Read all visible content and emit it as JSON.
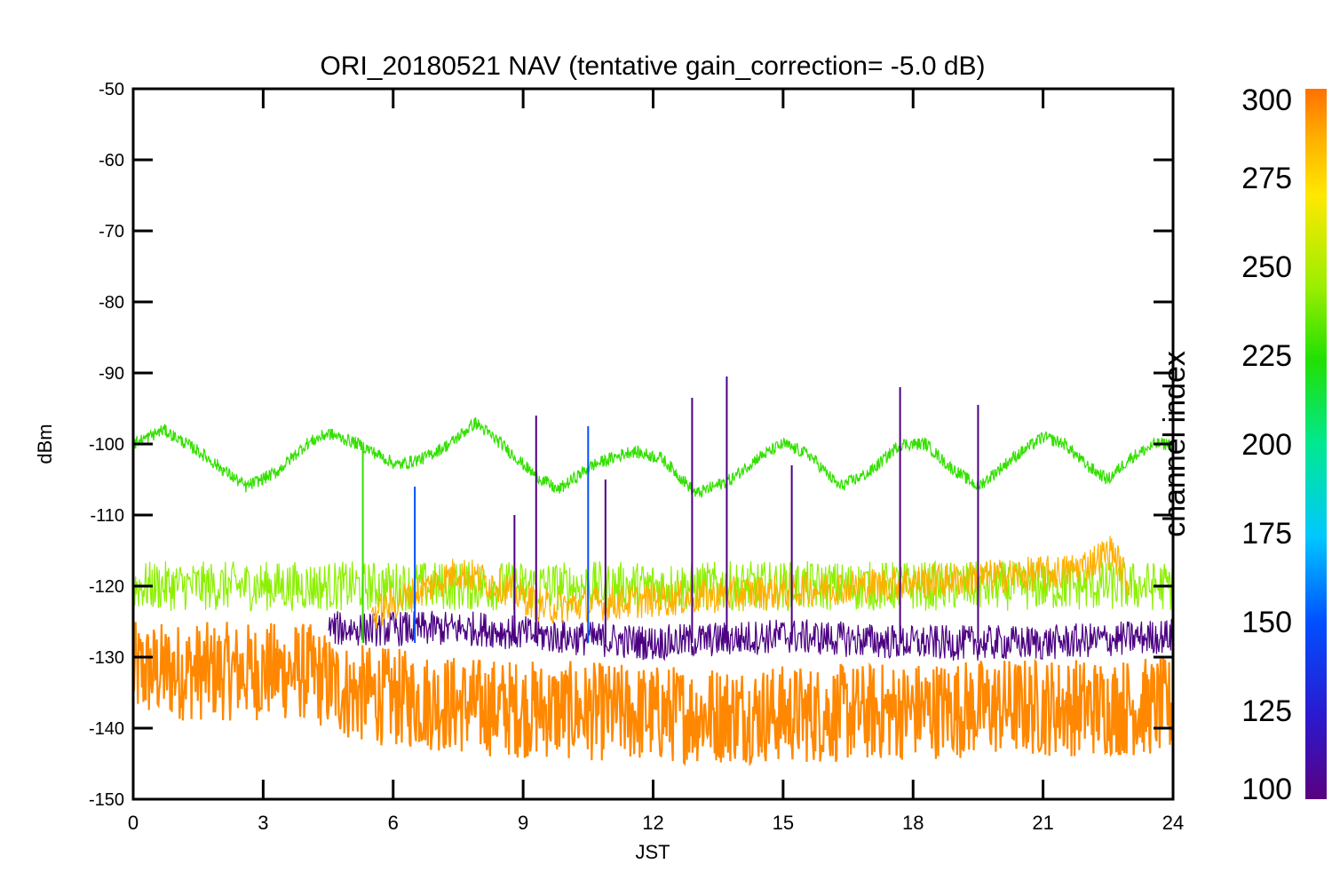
{
  "chart_data": {
    "type": "line",
    "title": "ORI_20180521 NAV (tentative gain_correction= -5.0 dB)",
    "xlabel": "JST",
    "ylabel": "dBm",
    "xlim": [
      0,
      24
    ],
    "ylim": [
      -150,
      -50
    ],
    "x_ticks": [
      "0",
      "3",
      "6",
      "9",
      "12",
      "15",
      "18",
      "21",
      "24"
    ],
    "y_ticks": [
      "-50",
      "-60",
      "-70",
      "-80",
      "-90",
      "-100",
      "-110",
      "-120",
      "-130",
      "-140",
      "-150"
    ],
    "grid": false,
    "colorbar": {
      "label": "channel index",
      "range": [
        100,
        300
      ],
      "ticks": [
        "100",
        "125",
        "150",
        "175",
        "200",
        "225",
        "250",
        "275",
        "300"
      ],
      "colors": [
        "#5a0080",
        "#2a1ad0",
        "#0050ff",
        "#00c8ff",
        "#00e890",
        "#22e000",
        "#9aee00",
        "#ffe800",
        "#ffb000",
        "#ff7000"
      ]
    },
    "series": [
      {
        "channel": 230,
        "color": "#33e000",
        "values": [
          [
            0,
            -100
          ],
          [
            0.7,
            -98
          ],
          [
            1.5,
            -101
          ],
          [
            2.6,
            -106
          ],
          [
            3.3,
            -104
          ],
          [
            4.0,
            -100
          ],
          [
            4.5,
            -98.5
          ],
          [
            5.2,
            -100
          ],
          [
            6.1,
            -103
          ],
          [
            6.7,
            -102
          ],
          [
            7.3,
            -100
          ],
          [
            7.9,
            -97
          ],
          [
            8.5,
            -100
          ],
          [
            9.2,
            -104
          ],
          [
            9.8,
            -106.5
          ],
          [
            10.6,
            -103
          ],
          [
            11.5,
            -101
          ],
          [
            12.2,
            -102
          ],
          [
            13.0,
            -107
          ],
          [
            13.8,
            -105
          ],
          [
            14.4,
            -102
          ],
          [
            15.0,
            -100
          ],
          [
            15.6,
            -101.5
          ],
          [
            16.3,
            -106
          ],
          [
            17.0,
            -104
          ],
          [
            17.7,
            -100
          ],
          [
            18.3,
            -100
          ],
          [
            18.8,
            -103
          ],
          [
            19.5,
            -106
          ],
          [
            20.3,
            -102
          ],
          [
            21.0,
            -99
          ],
          [
            21.5,
            -100
          ],
          [
            22.0,
            -103
          ],
          [
            22.5,
            -105
          ],
          [
            23.0,
            -102
          ],
          [
            23.6,
            -100
          ],
          [
            24.0,
            -100
          ]
        ]
      },
      {
        "channel": 260,
        "color": "#8cf000",
        "values": [
          [
            0,
            -120
          ],
          [
            6,
            -120
          ],
          [
            12,
            -120
          ],
          [
            18,
            -120
          ],
          [
            24,
            -120
          ]
        ]
      },
      {
        "channel": 280,
        "color": "#ffb000",
        "values": [
          [
            5.5,
            -124
          ],
          [
            6.5,
            -121
          ],
          [
            7.5,
            -118
          ],
          [
            8.5,
            -120
          ],
          [
            9.5,
            -123
          ],
          [
            21.5,
            -118
          ],
          [
            22.0,
            -117
          ],
          [
            22.6,
            -115
          ],
          [
            23.0,
            -120
          ]
        ]
      },
      {
        "channel": 110,
        "color": "#4b0082",
        "values": [
          [
            4.5,
            -126
          ],
          [
            6.5,
            -126
          ],
          [
            8,
            -126
          ],
          [
            9.5,
            -127
          ],
          [
            12,
            -128
          ],
          [
            15,
            -127
          ],
          [
            18,
            -128
          ],
          [
            21,
            -128
          ],
          [
            24,
            -127
          ]
        ]
      },
      {
        "channel": 290,
        "color": "#ff8800",
        "values": [
          [
            0,
            -132
          ],
          [
            4,
            -132
          ],
          [
            5,
            -135
          ],
          [
            8,
            -137
          ],
          [
            12,
            -138
          ],
          [
            16,
            -138
          ],
          [
            20,
            -137
          ],
          [
            24,
            -137
          ]
        ]
      }
    ],
    "spikes": [
      {
        "x": 5.3,
        "y": -101,
        "color": "#33e000"
      },
      {
        "x": 6.5,
        "y": -106,
        "color": "#0050ff"
      },
      {
        "x": 8.8,
        "y": -110,
        "color": "#4b0082"
      },
      {
        "x": 9.3,
        "y": -96,
        "color": "#4b0082"
      },
      {
        "x": 10.5,
        "y": -97.5,
        "color": "#0050ff"
      },
      {
        "x": 10.9,
        "y": -105,
        "color": "#4b0082"
      },
      {
        "x": 12.9,
        "y": -93.5,
        "color": "#4b0082"
      },
      {
        "x": 13.7,
        "y": -90.5,
        "color": "#4b0082"
      },
      {
        "x": 15.2,
        "y": -103,
        "color": "#4b0082"
      },
      {
        "x": 17.7,
        "y": -92,
        "color": "#4b0082"
      },
      {
        "x": 19.5,
        "y": -94.5,
        "color": "#4b0082"
      }
    ]
  }
}
